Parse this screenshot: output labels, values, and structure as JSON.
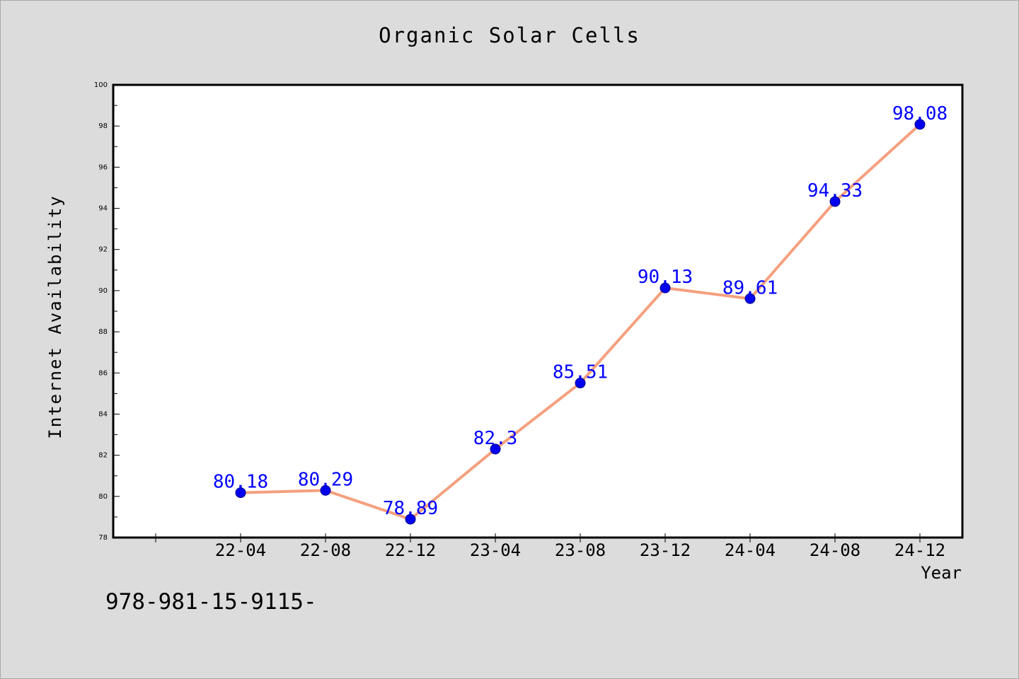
{
  "chart_data": {
    "type": "line",
    "title": "Organic Solar Cells",
    "xlabel": "Year",
    "ylabel": "Internet Availability",
    "categories": [
      "22-04",
      "22-08",
      "22-12",
      "23-04",
      "23-08",
      "23-12",
      "24-04",
      "24-08",
      "24-12"
    ],
    "series": [
      {
        "values": [
          80.18,
          80.29,
          78.89,
          82.3,
          85.51,
          90.13,
          89.61,
          94.33,
          98.08
        ],
        "data_labels": [
          "80.18",
          "80.29",
          "78.89",
          "82.3",
          "85.51",
          "90.13",
          "89.61",
          "94.33",
          "98.08"
        ]
      }
    ],
    "ylim": [
      78,
      100
    ],
    "yticks": [
      "78",
      "80",
      "82",
      "84",
      "86",
      "88",
      "90",
      "92",
      "94",
      "96",
      "98",
      "100"
    ],
    "grid": false,
    "legend": "none",
    "colors": {
      "line": "#f4a07e",
      "marker": "#0000ee",
      "data_label": "#0000ff",
      "background": "#dcdcdc",
      "plot_area": "#ffffff"
    }
  },
  "footnote": "978-981-15-9115-"
}
